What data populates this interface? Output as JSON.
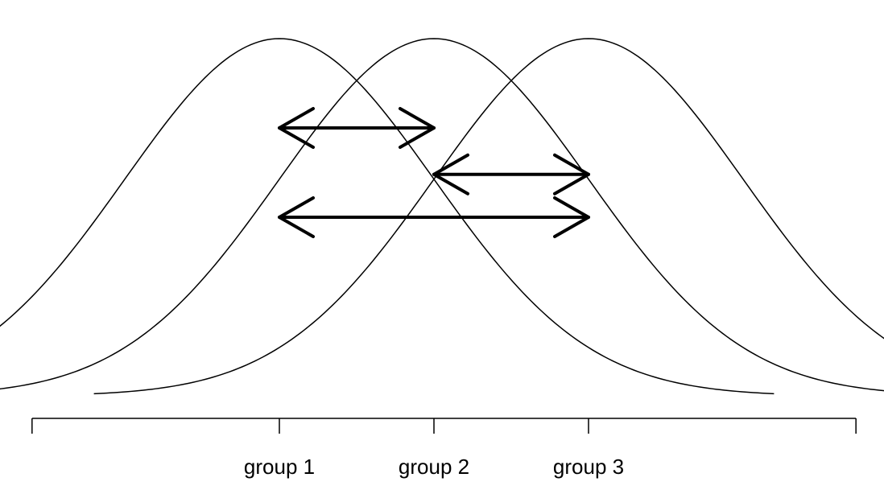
{
  "chart_data": {
    "type": "line",
    "description_free": true,
    "x_range": [
      -3.2,
      5.2
    ],
    "y_range": [
      0,
      1
    ],
    "grid": false,
    "groups": [
      {
        "label": "group 1",
        "mean": 0,
        "sd": 1
      },
      {
        "label": "group 2",
        "mean": 1,
        "sd": 1
      },
      {
        "label": "group 3",
        "mean": 2,
        "sd": 1
      }
    ],
    "axis_ticks": [
      -1.6,
      0,
      1,
      2,
      3.73
    ],
    "tick_labels": [
      "",
      "group 1",
      "group 2",
      "group 3",
      ""
    ],
    "comparisons": [
      {
        "from": "group 1",
        "to": "group 2",
        "level": 0.75
      },
      {
        "from": "group 2",
        "to": "group 3",
        "level": 0.62
      },
      {
        "from": "group 1",
        "to": "group 3",
        "level": 0.5
      }
    ],
    "colors": {
      "curve": "#000000",
      "arrow": "#000000",
      "axis": "#000000"
    }
  }
}
